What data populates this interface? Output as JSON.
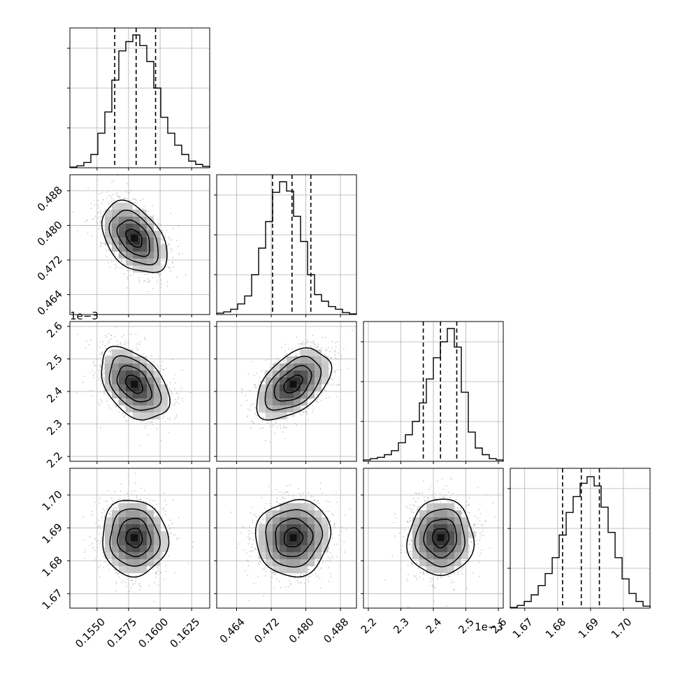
{
  "chart_data": {
    "type": "corner",
    "parameters": [
      {
        "ticks": [
          "0.1550",
          "0.1575",
          "0.1600",
          "0.1625"
        ],
        "tick_values": [
          0.155,
          0.1575,
          0.16,
          0.1625
        ],
        "range": [
          0.15285,
          0.16393
        ],
        "quantiles": [
          0.1564,
          0.1581,
          0.15964
        ]
      },
      {
        "ticks": [
          "0.464",
          "0.472",
          "0.480",
          "0.488"
        ],
        "tick_values": [
          0.464,
          0.472,
          0.48,
          0.488
        ],
        "range": [
          0.4594,
          0.4917
        ],
        "quantiles": [
          0.47231,
          0.47681,
          0.48116
        ]
      },
      {
        "ticks": [
          "2.2",
          "2.3",
          "2.4",
          "2.5",
          "2.6"
        ],
        "tick_values": [
          2.2,
          2.3,
          2.4,
          2.5,
          2.6
        ],
        "range": [
          2.185,
          2.615
        ],
        "quantiles": [
          2.369,
          2.422,
          2.472
        ],
        "offset_label": "1e−3"
      },
      {
        "ticks": [
          "1.67",
          "1.68",
          "1.69",
          "1.70"
        ],
        "tick_values": [
          1.67,
          1.68,
          1.69,
          1.7
        ],
        "range": [
          1.6656,
          1.7081
        ],
        "quantiles": [
          1.6815,
          1.6872,
          1.6927
        ]
      }
    ],
    "histograms": [
      [
        0.005,
        0.015,
        0.04,
        0.1,
        0.26,
        0.42,
        0.66,
        0.88,
        0.95,
        1.0,
        0.92,
        0.8,
        0.6,
        0.38,
        0.26,
        0.17,
        0.1,
        0.05,
        0.025,
        0.01
      ],
      [
        0.01,
        0.02,
        0.04,
        0.08,
        0.14,
        0.3,
        0.5,
        0.7,
        0.92,
        1.0,
        0.93,
        0.74,
        0.55,
        0.3,
        0.15,
        0.1,
        0.06,
        0.04,
        0.015,
        0.005
      ],
      [
        0.01,
        0.02,
        0.03,
        0.05,
        0.08,
        0.14,
        0.2,
        0.3,
        0.44,
        0.62,
        0.78,
        0.9,
        1.0,
        0.86,
        0.52,
        0.22,
        0.1,
        0.05,
        0.02,
        0.01
      ],
      [
        0.005,
        0.02,
        0.05,
        0.1,
        0.17,
        0.26,
        0.38,
        0.55,
        0.72,
        0.84,
        0.94,
        0.99,
        0.92,
        0.76,
        0.57,
        0.38,
        0.22,
        0.11,
        0.05,
        0.015
      ]
    ],
    "pairs": [
      {
        "row": 1,
        "col": 0,
        "x_center": 0.15795,
        "y_center": 0.47707,
        "x_sd": 0.00129,
        "y_sd": 0.00413,
        "rho": -0.42
      },
      {
        "row": 2,
        "col": 0,
        "x_center": 0.15795,
        "y_center": 2.4225,
        "x_sd": 0.00135,
        "y_sd": 0.0555,
        "rho": -0.42
      },
      {
        "row": 2,
        "col": 1,
        "x_center": 0.47707,
        "y_center": 2.4225,
        "x_sd": 0.0043,
        "y_sd": 0.0542,
        "rho": 0.48
      },
      {
        "row": 3,
        "col": 0,
        "x_center": 0.15795,
        "y_center": 1.687,
        "x_sd": 0.0013,
        "y_sd": 0.0058,
        "rho": -0.04
      },
      {
        "row": 3,
        "col": 1,
        "x_center": 0.47707,
        "y_center": 1.687,
        "x_sd": 0.0043,
        "y_sd": 0.0058,
        "rho": 0.05
      },
      {
        "row": 3,
        "col": 2,
        "x_center": 2.4225,
        "y_center": 1.687,
        "x_sd": 0.0505,
        "y_sd": 0.0058,
        "rho": 0.03
      }
    ],
    "contour_levels_sigma": [
      0.5,
      1.0,
      1.5,
      2.0
    ],
    "grid": true,
    "colors": {
      "line": "#000000",
      "grid": "#b0b0b0",
      "scatter": "#bdbdbd",
      "density_high": "#333333",
      "density_low": "#f2f2f2"
    }
  }
}
